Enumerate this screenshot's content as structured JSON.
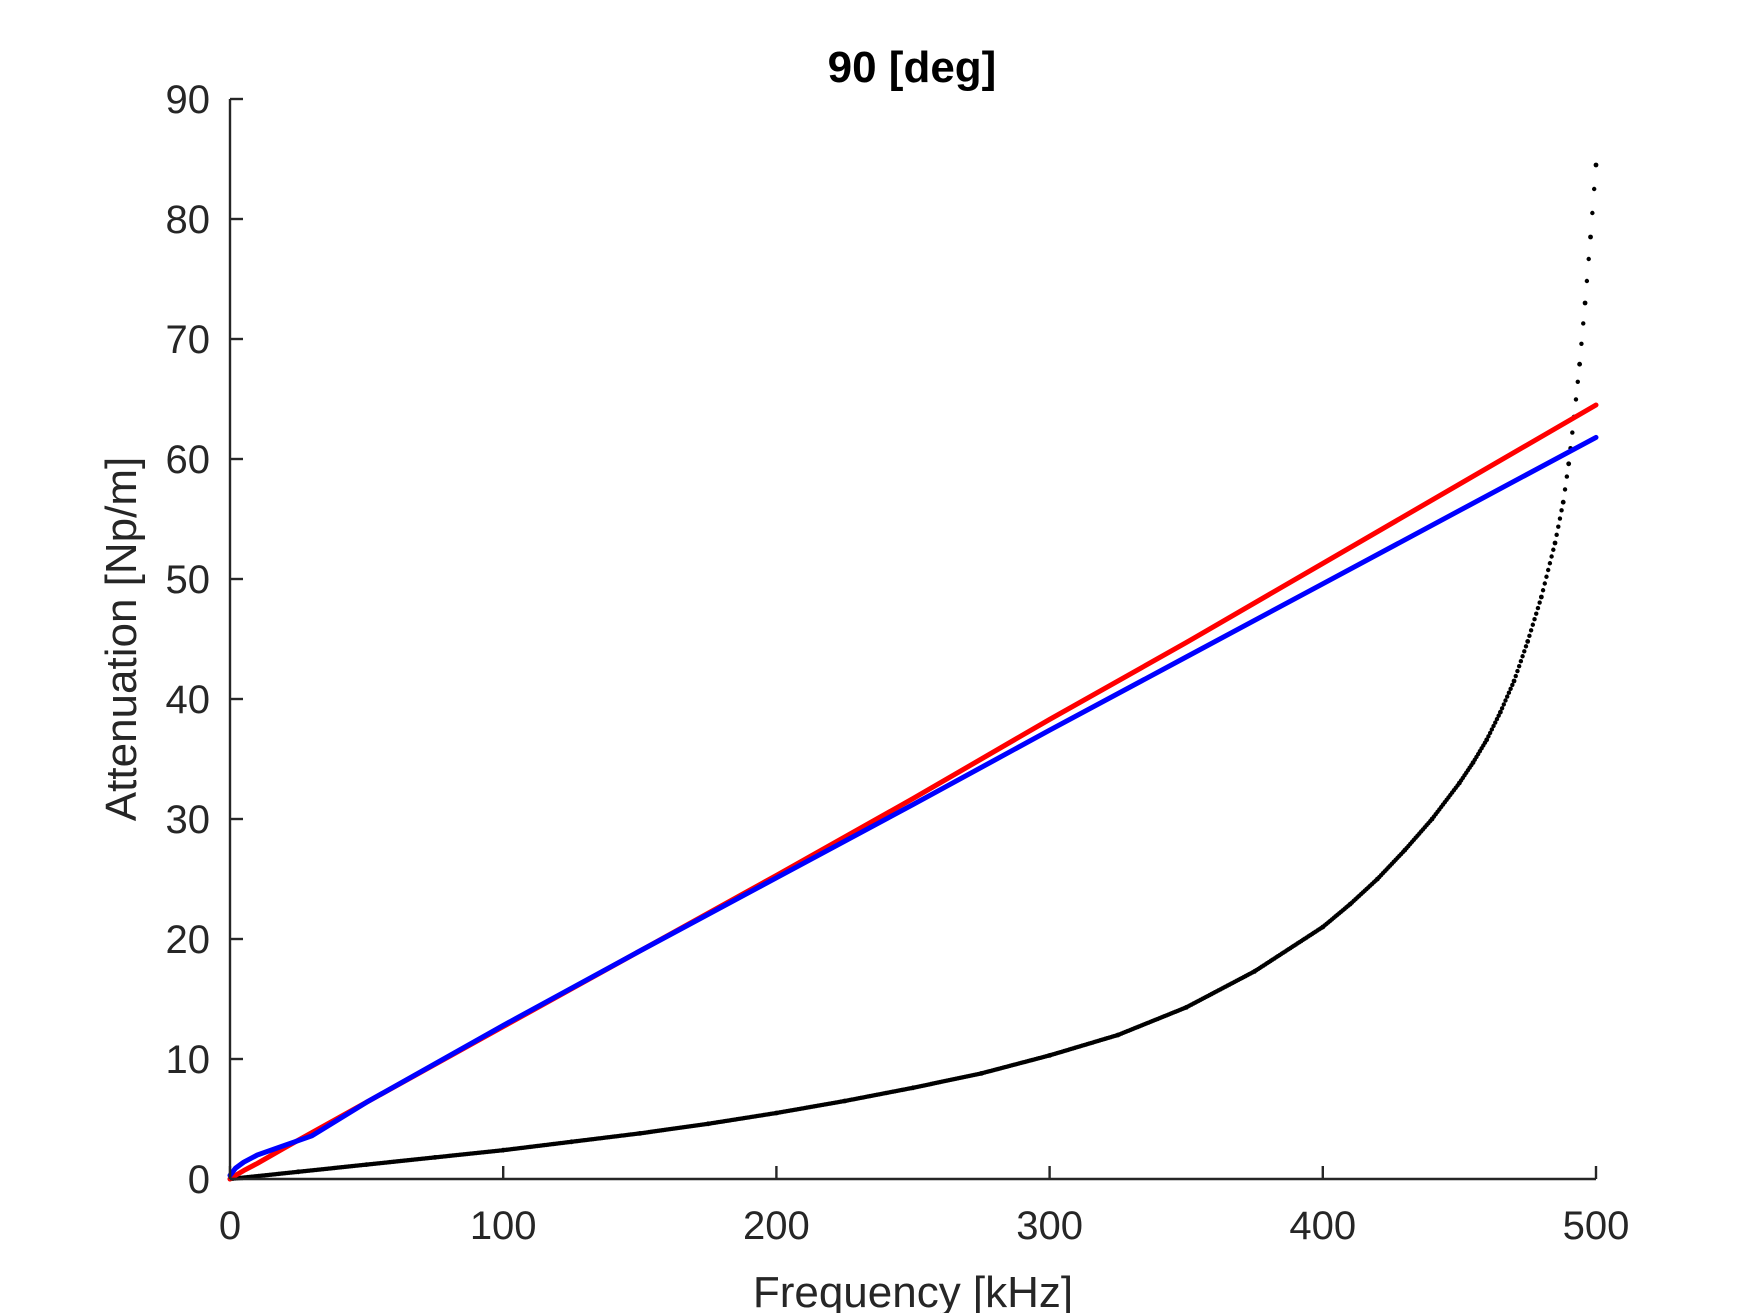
{
  "chart_data": {
    "type": "line",
    "title": "90 [deg]",
    "xlabel": "Frequency [kHz]",
    "ylabel": "Attenuation [Np/m]",
    "xlim": [
      0,
      500
    ],
    "ylim": [
      0,
      90
    ],
    "xticks": [
      "0",
      "100",
      "200",
      "300",
      "400",
      "500"
    ],
    "yticks": [
      "0",
      "10",
      "20",
      "30",
      "40",
      "50",
      "60",
      "70",
      "80",
      "90"
    ],
    "grid": false,
    "box": false,
    "series": [
      {
        "color": "#0000ff",
        "style": "line",
        "x": [
          0,
          2,
          5,
          10,
          20,
          30,
          50,
          100,
          150,
          200,
          250,
          300,
          350,
          400,
          450,
          500
        ],
        "y": [
          0.3,
          0.9,
          1.4,
          2.0,
          2.8,
          3.6,
          6.4,
          12.8,
          19.0,
          25.1,
          31.2,
          37.4,
          43.5,
          49.6,
          55.7,
          61.8
        ]
      },
      {
        "color": "#ff0000",
        "style": "line",
        "x": [
          0,
          2,
          5,
          10,
          20,
          50,
          100,
          150,
          200,
          250,
          300,
          350,
          400,
          450,
          500
        ],
        "y": [
          0,
          0.3,
          0.7,
          1.3,
          2.6,
          6.4,
          12.7,
          19.0,
          25.3,
          31.7,
          38.3,
          44.7,
          51.3,
          57.9,
          64.5
        ]
      },
      {
        "color": "#000000",
        "style": "dots",
        "x": [
          0,
          25,
          50,
          75,
          100,
          125,
          150,
          175,
          200,
          225,
          250,
          275,
          300,
          325,
          350,
          375,
          400,
          410,
          420,
          430,
          440,
          450,
          455,
          460,
          465,
          470,
          475,
          480,
          485,
          488,
          490,
          492,
          494,
          496,
          498,
          500
        ],
        "y": [
          0,
          0.6,
          1.2,
          1.8,
          2.4,
          3.1,
          3.8,
          4.6,
          5.5,
          6.5,
          7.6,
          8.8,
          10.3,
          12.0,
          14.3,
          17.3,
          21.0,
          22.9,
          25.0,
          27.4,
          30.0,
          33.0,
          34.7,
          36.6,
          38.9,
          41.5,
          44.8,
          48.5,
          53.0,
          56.4,
          59.6,
          63.5,
          67.9,
          73.0,
          78.5,
          84.5
        ]
      }
    ]
  }
}
